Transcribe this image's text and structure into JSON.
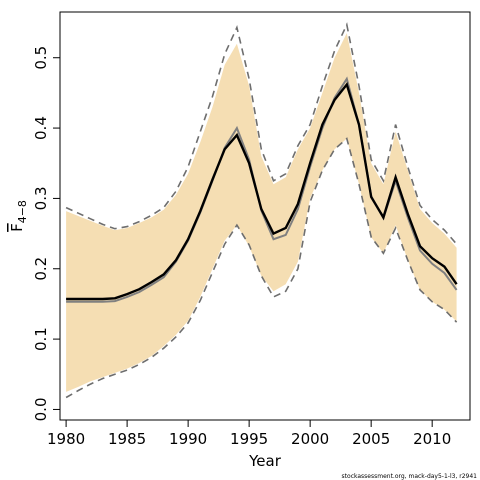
{
  "chart_data": {
    "type": "line",
    "xlabel": "Year",
    "ylabel": "F",
    "ylabel_sub": "4−8",
    "footnote": "stockassessment.org, mack-day5-1-l3, r2941",
    "xlim": [
      1979.5,
      2013.1
    ],
    "ylim": [
      -0.015,
      0.565
    ],
    "x_ticks": [
      1980,
      1985,
      1990,
      1995,
      2000,
      2005,
      2010
    ],
    "x_tick_labels": [
      "1980",
      "1985",
      "1990",
      "1995",
      "2000",
      "2005",
      "2010"
    ],
    "y_ticks": [
      0.0,
      0.1,
      0.2,
      0.3,
      0.4,
      0.5
    ],
    "y_tick_labels": [
      "0.0",
      "0.1",
      "0.2",
      "0.3",
      "0.4",
      "0.5"
    ],
    "colors": {
      "band": "#f5deb3",
      "estimate": "#000000",
      "previous": "#808080",
      "bounds": "#6e6e6e"
    },
    "x": [
      1980,
      1981,
      1982,
      1983,
      1984,
      1985,
      1986,
      1987,
      1988,
      1989,
      1990,
      1991,
      1992,
      1993,
      1994,
      1995,
      1996,
      1997,
      1998,
      1999,
      2000,
      2001,
      2002,
      2003,
      2004,
      2005,
      2006,
      2007,
      2008,
      2009,
      2010,
      2011,
      2012
    ],
    "series": [
      {
        "role": "band_upper",
        "values": [
          0.282,
          0.275,
          0.268,
          0.261,
          0.255,
          0.258,
          0.265,
          0.273,
          0.284,
          0.305,
          0.335,
          0.38,
          0.43,
          0.49,
          0.52,
          0.46,
          0.36,
          0.32,
          0.33,
          0.37,
          0.4,
          0.45,
          0.5,
          0.535,
          0.45,
          0.35,
          0.32,
          0.395,
          0.34,
          0.285,
          0.265,
          0.25,
          0.23
        ]
      },
      {
        "role": "band_lower",
        "values": [
          0.025,
          0.032,
          0.04,
          0.046,
          0.052,
          0.058,
          0.066,
          0.076,
          0.09,
          0.106,
          0.126,
          0.16,
          0.2,
          0.24,
          0.262,
          0.232,
          0.19,
          0.168,
          0.178,
          0.21,
          0.3,
          0.34,
          0.37,
          0.385,
          0.32,
          0.245,
          0.222,
          0.262,
          0.212,
          0.17,
          0.153,
          0.142,
          0.125
        ]
      },
      {
        "role": "upper_bound_dashed",
        "values": [
          0.287,
          0.279,
          0.271,
          0.263,
          0.257,
          0.26,
          0.267,
          0.276,
          0.287,
          0.31,
          0.345,
          0.395,
          0.445,
          0.505,
          0.543,
          0.47,
          0.37,
          0.325,
          0.335,
          0.375,
          0.405,
          0.46,
          0.51,
          0.547,
          0.46,
          0.355,
          0.325,
          0.405,
          0.345,
          0.29,
          0.27,
          0.255,
          0.235
        ]
      },
      {
        "role": "lower_bound_dashed",
        "values": [
          0.017,
          0.027,
          0.036,
          0.044,
          0.05,
          0.056,
          0.064,
          0.074,
          0.087,
          0.103,
          0.123,
          0.155,
          0.195,
          0.235,
          0.262,
          0.234,
          0.19,
          0.16,
          0.168,
          0.2,
          0.295,
          0.34,
          0.37,
          0.385,
          0.32,
          0.245,
          0.222,
          0.258,
          0.212,
          0.17,
          0.153,
          0.142,
          0.124
        ]
      },
      {
        "role": "previous_estimate",
        "values": [
          0.153,
          0.153,
          0.153,
          0.153,
          0.154,
          0.16,
          0.167,
          0.177,
          0.188,
          0.21,
          0.24,
          0.28,
          0.325,
          0.372,
          0.4,
          0.355,
          0.283,
          0.242,
          0.248,
          0.285,
          0.345,
          0.4,
          0.443,
          0.47,
          0.405,
          0.303,
          0.272,
          0.325,
          0.273,
          0.226,
          0.207,
          0.194,
          0.17
        ]
      },
      {
        "role": "estimate",
        "values": [
          0.157,
          0.157,
          0.157,
          0.157,
          0.158,
          0.164,
          0.171,
          0.181,
          0.192,
          0.212,
          0.242,
          0.282,
          0.327,
          0.37,
          0.39,
          0.35,
          0.285,
          0.25,
          0.258,
          0.292,
          0.35,
          0.405,
          0.44,
          0.462,
          0.405,
          0.302,
          0.273,
          0.33,
          0.278,
          0.232,
          0.215,
          0.203,
          0.178
        ]
      }
    ]
  }
}
